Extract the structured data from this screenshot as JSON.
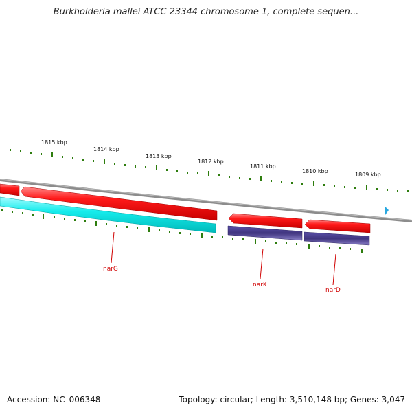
{
  "title": "Burkholderia mallei ATCC 23344 chromosome 1, complete sequen...",
  "footer": {
    "accession": "Accession: NC_006348",
    "summary": "Topology: circular; Length: 3,510,148 bp; Genes: 3,047"
  },
  "ruler_labels": [
    "1815 kbp",
    "1814 kbp",
    "1813 kbp",
    "1812 kbp",
    "1811 kbp",
    "1810 kbp",
    "1809 kbp"
  ],
  "gene_labels": [
    "narG",
    "narK",
    "narD"
  ],
  "colors": {
    "forward_cds": "#ee0000",
    "reverse_cds_cyan": "#00e5e5",
    "reverse_cds_purple": "#4b3f8f",
    "backbone": "#888888",
    "ticks": "#2e7d0e",
    "label": "#d00000"
  }
}
